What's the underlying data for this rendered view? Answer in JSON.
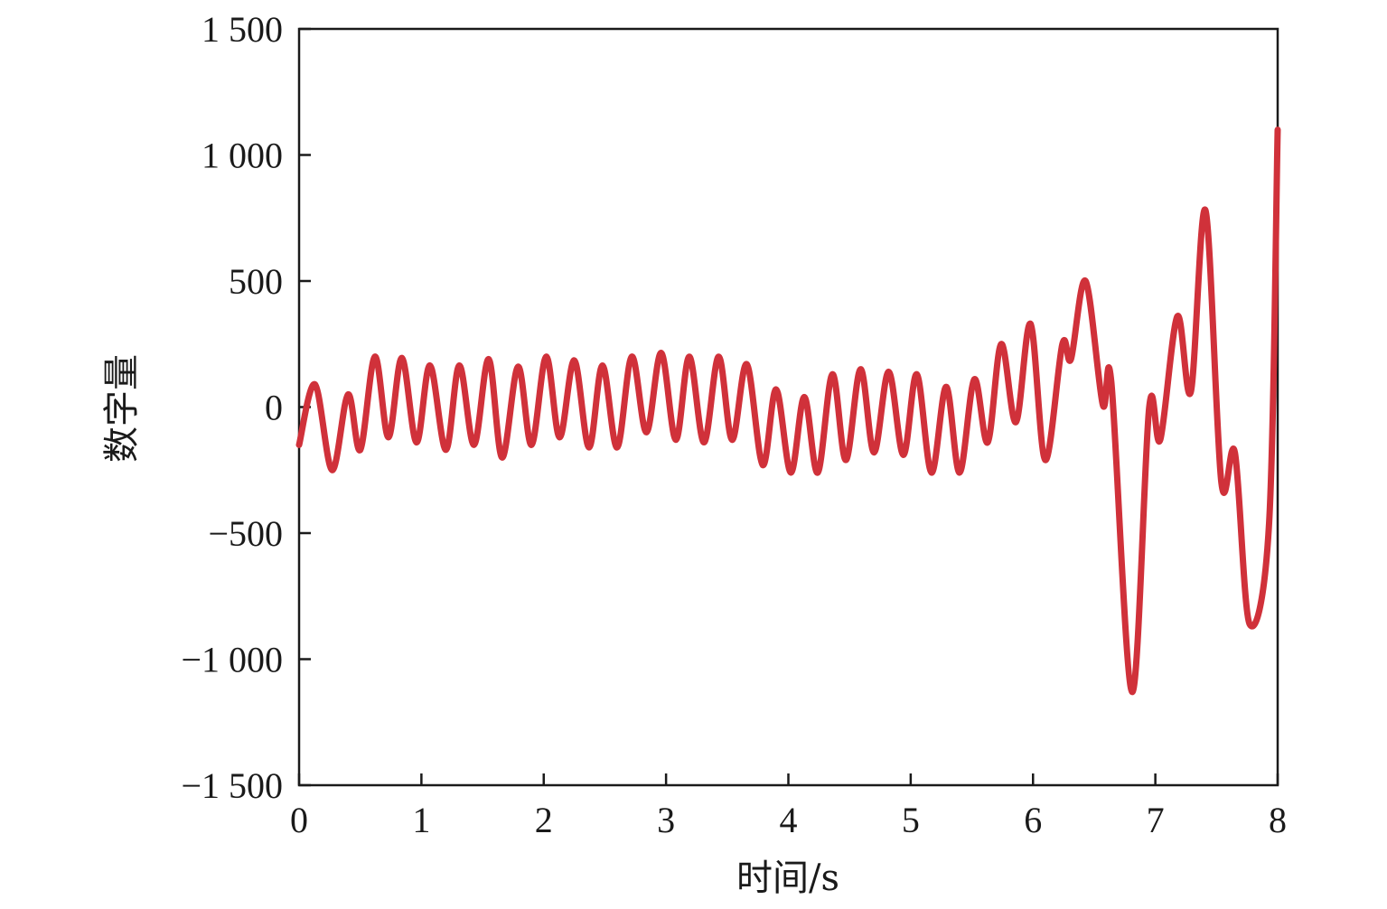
{
  "chart_data": {
    "type": "line",
    "title": "",
    "xlabel": "时间/s",
    "ylabel": "数字量",
    "xlim": [
      0,
      8
    ],
    "ylim": [
      -1500,
      1500
    ],
    "x_ticks": [
      0,
      1,
      2,
      3,
      4,
      5,
      6,
      7,
      8
    ],
    "y_ticks": [
      -1500,
      -1000,
      -500,
      0,
      500,
      1000,
      1500
    ],
    "x_tick_labels": [
      "0",
      "1",
      "2",
      "3",
      "4",
      "5",
      "6",
      "7",
      "8"
    ],
    "y_tick_labels": [
      "−1 500",
      "−1 000",
      "−500",
      "0",
      "500",
      "1 000",
      "1 500"
    ],
    "grid": false,
    "legend": "none",
    "series": [
      {
        "color": "#d0313a",
        "points": [
          [
            0.0,
            -150
          ],
          [
            0.13,
            90
          ],
          [
            0.27,
            -250
          ],
          [
            0.4,
            50
          ],
          [
            0.5,
            -170
          ],
          [
            0.62,
            200
          ],
          [
            0.73,
            -120
          ],
          [
            0.84,
            195
          ],
          [
            0.96,
            -140
          ],
          [
            1.07,
            165
          ],
          [
            1.2,
            -170
          ],
          [
            1.31,
            165
          ],
          [
            1.43,
            -150
          ],
          [
            1.55,
            190
          ],
          [
            1.66,
            -200
          ],
          [
            1.79,
            160
          ],
          [
            1.9,
            -150
          ],
          [
            2.02,
            200
          ],
          [
            2.13,
            -120
          ],
          [
            2.25,
            185
          ],
          [
            2.37,
            -160
          ],
          [
            2.48,
            165
          ],
          [
            2.6,
            -160
          ],
          [
            2.72,
            200
          ],
          [
            2.84,
            -100
          ],
          [
            2.96,
            215
          ],
          [
            3.08,
            -130
          ],
          [
            3.19,
            200
          ],
          [
            3.31,
            -140
          ],
          [
            3.43,
            200
          ],
          [
            3.54,
            -130
          ],
          [
            3.66,
            170
          ],
          [
            3.79,
            -230
          ],
          [
            3.9,
            70
          ],
          [
            4.02,
            -260
          ],
          [
            4.13,
            40
          ],
          [
            4.24,
            -260
          ],
          [
            4.36,
            130
          ],
          [
            4.47,
            -210
          ],
          [
            4.59,
            150
          ],
          [
            4.7,
            -180
          ],
          [
            4.82,
            140
          ],
          [
            4.94,
            -190
          ],
          [
            5.05,
            130
          ],
          [
            5.17,
            -260
          ],
          [
            5.29,
            80
          ],
          [
            5.4,
            -260
          ],
          [
            5.52,
            110
          ],
          [
            5.63,
            -140
          ],
          [
            5.74,
            250
          ],
          [
            5.86,
            -60
          ],
          [
            5.98,
            330
          ],
          [
            6.1,
            -210
          ],
          [
            6.24,
            250
          ],
          [
            6.31,
            190
          ],
          [
            6.43,
            500
          ],
          [
            6.57,
            10
          ],
          [
            6.64,
            100
          ],
          [
            6.81,
            -1130
          ],
          [
            6.95,
            0
          ],
          [
            7.04,
            -130
          ],
          [
            7.18,
            360
          ],
          [
            7.29,
            60
          ],
          [
            7.41,
            780
          ],
          [
            7.54,
            -300
          ],
          [
            7.65,
            -180
          ],
          [
            7.77,
            -860
          ],
          [
            7.93,
            -460
          ],
          [
            8.0,
            1100
          ]
        ]
      }
    ]
  }
}
